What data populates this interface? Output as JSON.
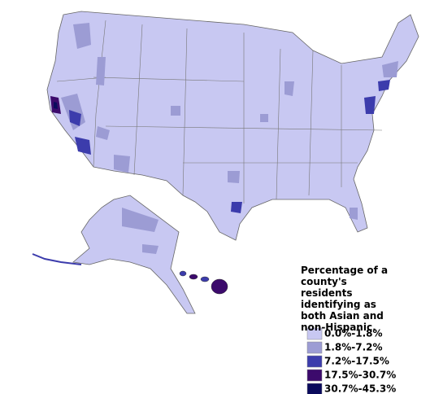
{
  "legend": {
    "title": "Percentage of a county's residents identifying as both Asian and non-Hispanic.",
    "items": [
      {
        "label": "0.0%-1.8%",
        "color": "#c8c8f2"
      },
      {
        "label": "1.8%-7.2%",
        "color": "#9c9cd4"
      },
      {
        "label": "7.2%-17.5%",
        "color": "#3c3cac"
      },
      {
        "label": "17.5%-30.7%",
        "color": "#3c0a6c"
      },
      {
        "label": "30.7%-45.3%",
        "color": "#0a0a5c"
      }
    ]
  }
}
